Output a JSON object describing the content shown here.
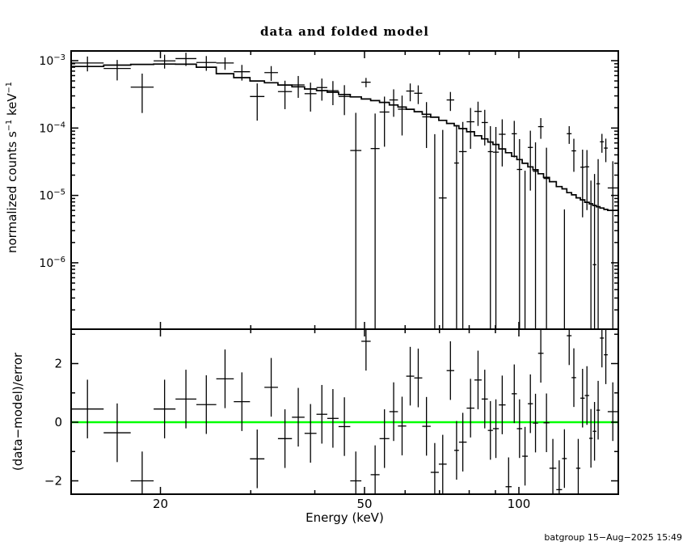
{
  "title": "data and folded model",
  "xlabel": "Energy (keV)",
  "ylabel_top": {
    "base": "normalized counts s",
    "sup1": "−1",
    "mid": " keV",
    "sup2": "−1"
  },
  "ylabel_bottom": "(data−model)/error",
  "footer": {
    "timestamp": "batgroup 15−Aug−2025 15:49"
  },
  "colors": {
    "frame": "#000000",
    "data": "#000000",
    "model_line": "#000000",
    "zero_line": "#00ff00",
    "background": "#ffffff"
  },
  "chart_data": [
    {
      "type": "line",
      "name": "folded-spectrum",
      "title": "data and folded model",
      "ylabel": "normalized counts s-1 keV-1",
      "xlabel": "Energy (keV)",
      "xscale": "log",
      "yscale": "log",
      "xlim": [
        13.4,
        156
      ],
      "ylim": [
        1.05e-07,
        0.00139
      ],
      "xticks_major": [
        20,
        50,
        100
      ],
      "xticks_minor": [
        30,
        40,
        60,
        70,
        80,
        90
      ],
      "ytick_exponents": [
        -3,
        -4,
        -5,
        -6
      ],
      "grid": false,
      "legend": "none",
      "model_is_step_histogram": true,
      "note": "data_value = model*(1 + residual_sigma*rel_err); data_err = model*rel_err; crosses clipped at panel bottom",
      "bins_format": [
        "e_lo_keV",
        "e_hi_keV",
        "model_counts_s_keV",
        "residual_sigma",
        "rel_err"
      ],
      "bins": [
        [
          13.4,
          15.5,
          0.00082,
          0.45,
          0.28
        ],
        [
          15.5,
          17.5,
          0.00086,
          -0.36,
          0.3
        ],
        [
          17.5,
          19.4,
          0.00088,
          -2.0,
          0.27
        ],
        [
          19.4,
          21.4,
          0.00089,
          0.45,
          0.26
        ],
        [
          21.4,
          23.5,
          0.000885,
          0.79,
          0.27
        ],
        [
          23.5,
          25.7,
          0.0008,
          0.6,
          0.29
        ],
        [
          25.7,
          27.8,
          0.00064,
          1.48,
          0.3
        ],
        [
          27.8,
          29.9,
          0.00056,
          0.7,
          0.32
        ],
        [
          29.9,
          31.9,
          0.0005,
          -1.25,
          0.33
        ],
        [
          31.9,
          33.9,
          0.00047,
          1.19,
          0.35
        ],
        [
          33.9,
          36.1,
          0.000435,
          -0.56,
          0.36
        ],
        [
          36.1,
          38.2,
          0.00041,
          0.17,
          0.38
        ],
        [
          38.2,
          40.3,
          0.00038,
          -0.38,
          0.39
        ],
        [
          40.3,
          42.3,
          0.00036,
          0.27,
          0.4
        ],
        [
          42.3,
          44.5,
          0.00034,
          0.13,
          0.41
        ],
        [
          44.5,
          46.9,
          0.000315,
          -0.15,
          0.44
        ],
        [
          46.9,
          49.3,
          0.00029,
          -2.0,
          0.42
        ],
        [
          49.3,
          51.4,
          0.00027,
          2.76,
          0.28
        ],
        [
          51.4,
          53.5,
          0.000255,
          -1.79,
          0.45
        ],
        [
          53.5,
          55.9,
          0.00024,
          -0.56,
          0.5
        ],
        [
          55.9,
          58.1,
          0.00022,
          0.36,
          0.52
        ],
        [
          58.1,
          60.3,
          0.000205,
          -0.13,
          0.55
        ],
        [
          60.3,
          62.5,
          0.00019,
          1.57,
          0.55
        ],
        [
          62.5,
          64.8,
          0.000175,
          1.51,
          0.58
        ],
        [
          64.8,
          67.3,
          0.00016,
          -0.14,
          0.6
        ],
        [
          67.3,
          69.8,
          0.000145,
          -1.71,
          0.62
        ],
        [
          69.8,
          72.3,
          0.00013,
          -1.43,
          0.65
        ],
        [
          72.3,
          74.8,
          0.000117,
          1.76,
          0.7
        ],
        [
          74.8,
          76.4,
          0.000108,
          -0.96,
          0.75
        ],
        [
          76.4,
          79.1,
          9.8e-05,
          -0.68,
          0.8
        ],
        [
          79.1,
          81.9,
          8.8e-05,
          0.48,
          0.85
        ],
        [
          81.9,
          84.6,
          7.7e-05,
          1.44,
          0.9
        ],
        [
          84.6,
          87.0,
          6.9e-05,
          0.79,
          0.95
        ],
        [
          87.0,
          89.0,
          6.2e-05,
          -0.28,
          1.0
        ],
        [
          89.0,
          91.4,
          5.7e-05,
          -0.22,
          1.05
        ],
        [
          91.4,
          94.2,
          4.9e-05,
          0.59,
          1.1
        ],
        [
          94.2,
          96.8,
          4.3e-05,
          -2.2,
          1.15
        ],
        [
          96.8,
          99.1,
          3.8e-05,
          0.97,
          1.2
        ],
        [
          99.1,
          101.5,
          3.4e-05,
          -0.22,
          1.3
        ],
        [
          101.5,
          104.1,
          3e-05,
          -1.16,
          1.4
        ],
        [
          104.1,
          106.5,
          2.65e-05,
          0.63,
          1.5
        ],
        [
          106.5,
          109.0,
          2.4e-05,
          -0.03,
          1.6
        ],
        [
          109.0,
          111.7,
          2.1e-05,
          2.35,
          1.7
        ],
        [
          111.7,
          114.7,
          1.85e-05,
          -0.02,
          1.8
        ],
        [
          114.7,
          118.3,
          1.6e-05,
          -1.57,
          1.9
        ],
        [
          118.3,
          121.4,
          1.35e-05,
          -2.3,
          2.0
        ],
        [
          121.4,
          124.0,
          1.25e-05,
          -1.24,
          2.1
        ],
        [
          124.0,
          126.7,
          1.1e-05,
          2.95,
          2.2
        ],
        [
          126.7,
          129.3,
          1.02e-05,
          1.52,
          2.3
        ],
        [
          129.3,
          131.8,
          9.2e-06,
          -1.57,
          2.4
        ],
        [
          131.8,
          134.4,
          8.6e-06,
          0.82,
          2.5
        ],
        [
          134.4,
          137.1,
          7.9e-06,
          0.91,
          2.6
        ],
        [
          137.1,
          139.3,
          7.5e-06,
          -0.55,
          2.7
        ],
        [
          139.3,
          141.6,
          7.1e-06,
          -0.31,
          2.8
        ],
        [
          141.6,
          143.9,
          6.8e-06,
          0.41,
          2.9
        ],
        [
          143.9,
          146.5,
          6.5e-06,
          2.87,
          3.0
        ],
        [
          146.5,
          149.0,
          6.2e-06,
          2.3,
          3.1
        ],
        [
          149.0,
          156.0,
          6e-06,
          0.36,
          3.2
        ]
      ]
    },
    {
      "type": "scatter",
      "name": "residuals",
      "ylabel": "(data-model)/error",
      "xscale": "log",
      "xlim": [
        13.4,
        156
      ],
      "ylim": [
        -2.45,
        3.17
      ],
      "yticks_major": [
        -2,
        0,
        2
      ],
      "yticks_minor": [
        -1,
        1,
        3
      ],
      "zero_line_value": 0,
      "zero_line_color": "#00ff00",
      "residual_error_bar": 1.0,
      "note": "x bins and residual_sigma values shared with panel 1 bins array"
    }
  ]
}
